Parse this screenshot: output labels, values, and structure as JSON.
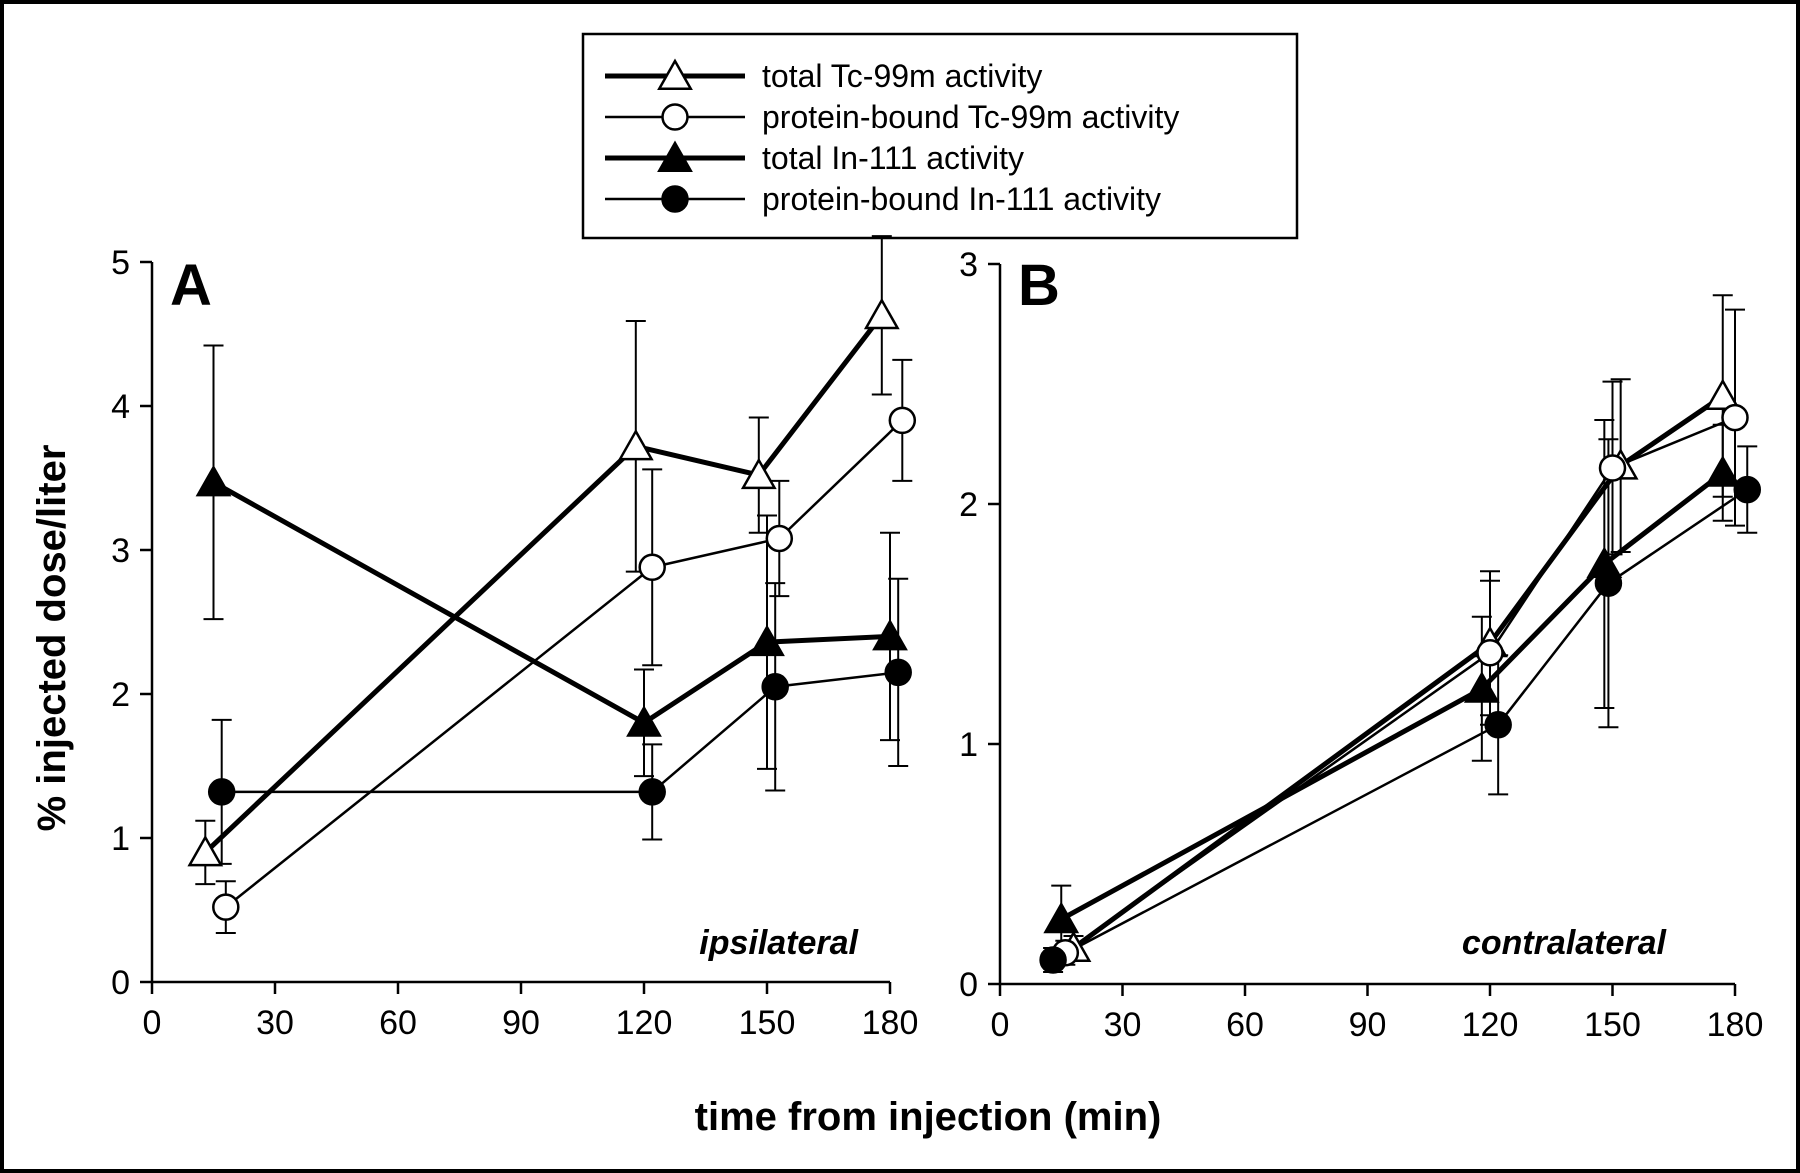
{
  "chart_data": {
    "type": "line",
    "xlabel": "time from injection (min)",
    "ylabel": "% injected dose/liter",
    "legend": {
      "placement": "top-center",
      "entries": [
        {
          "series": "tc_total",
          "label": "total Tc-99m activity"
        },
        {
          "series": "tc_protein",
          "label": "protein-bound Tc-99m activity"
        },
        {
          "series": "in_total",
          "label": "total In-111 activity"
        },
        {
          "series": "in_protein",
          "label": "protein-bound In-111 activity"
        }
      ]
    },
    "series_style": {
      "tc_total": {
        "marker": "triangle",
        "fill": "#ffffff",
        "line": "thick"
      },
      "tc_protein": {
        "marker": "circle",
        "fill": "#ffffff",
        "line": "thin"
      },
      "in_total": {
        "marker": "triangle",
        "fill": "#000000",
        "line": "thick"
      },
      "in_protein": {
        "marker": "circle",
        "fill": "#000000",
        "line": "thin"
      }
    },
    "panels": [
      {
        "letter": "A",
        "region": "ipsilateral",
        "xlim": [
          0,
          180
        ],
        "ylim": [
          0,
          5
        ],
        "xticks": [
          "0",
          "30",
          "60",
          "90",
          "120",
          "150",
          "180"
        ],
        "yticks": [
          "0",
          "1",
          "2",
          "3",
          "4",
          "5"
        ],
        "series": [
          {
            "id": "tc_total",
            "points": [
              {
                "x": 13,
                "y": 0.9,
                "err": 0.22
              },
              {
                "x": 118,
                "y": 3.72,
                "err": 0.87
              },
              {
                "x": 148,
                "y": 3.52,
                "err": 0.4
              },
              {
                "x": 178,
                "y": 4.63,
                "err": 0.55
              }
            ]
          },
          {
            "id": "tc_protein",
            "points": [
              {
                "x": 18,
                "y": 0.52,
                "err": 0.18
              },
              {
                "x": 122,
                "y": 2.88,
                "err": 0.68
              },
              {
                "x": 153,
                "y": 3.08,
                "err": 0.4
              },
              {
                "x": 183,
                "y": 3.9,
                "err": 0.42
              }
            ]
          },
          {
            "id": "in_total",
            "points": [
              {
                "x": 15,
                "y": 3.47,
                "err": 0.95
              },
              {
                "x": 120,
                "y": 1.8,
                "err": 0.37
              },
              {
                "x": 150,
                "y": 2.36,
                "err": 0.88
              },
              {
                "x": 180,
                "y": 2.4,
                "err": 0.72
              }
            ]
          },
          {
            "id": "in_protein",
            "points": [
              {
                "x": 17,
                "y": 1.32,
                "err": 0.5
              },
              {
                "x": 122,
                "y": 1.32,
                "err": 0.33
              },
              {
                "x": 152,
                "y": 2.05,
                "err": 0.72
              },
              {
                "x": 182,
                "y": 2.15,
                "err": 0.65
              }
            ]
          }
        ]
      },
      {
        "letter": "B",
        "region": "contralateral",
        "xlim": [
          0,
          180
        ],
        "ylim": [
          0,
          3
        ],
        "xticks": [
          "0",
          "30",
          "60",
          "90",
          "120",
          "150",
          "180"
        ],
        "yticks": [
          "0",
          "1",
          "2",
          "3"
        ],
        "series": [
          {
            "id": "tc_total",
            "points": [
              {
                "x": 18,
                "y": 0.15,
                "err": 0.05
              },
              {
                "x": 120,
                "y": 1.42,
                "err": 0.3
              },
              {
                "x": 152,
                "y": 2.16,
                "err": 0.36
              },
              {
                "x": 177,
                "y": 2.45,
                "err": 0.42
              }
            ]
          },
          {
            "id": "tc_protein",
            "points": [
              {
                "x": 16,
                "y": 0.13,
                "err": 0.05
              },
              {
                "x": 120,
                "y": 1.38,
                "err": 0.3
              },
              {
                "x": 150,
                "y": 2.15,
                "err": 0.36
              },
              {
                "x": 180,
                "y": 2.36,
                "err": 0.45
              }
            ]
          },
          {
            "id": "in_total",
            "points": [
              {
                "x": 15,
                "y": 0.27,
                "err": 0.14
              },
              {
                "x": 118,
                "y": 1.23,
                "err": 0.3
              },
              {
                "x": 148,
                "y": 1.75,
                "err": 0.6
              },
              {
                "x": 177,
                "y": 2.13,
                "err": 0.2
              }
            ]
          },
          {
            "id": "in_protein",
            "points": [
              {
                "x": 13,
                "y": 0.1,
                "err": 0.05
              },
              {
                "x": 122,
                "y": 1.08,
                "err": 0.29
              },
              {
                "x": 149,
                "y": 1.67,
                "err": 0.6
              },
              {
                "x": 183,
                "y": 2.06,
                "err": 0.18
              }
            ]
          }
        ]
      }
    ]
  }
}
